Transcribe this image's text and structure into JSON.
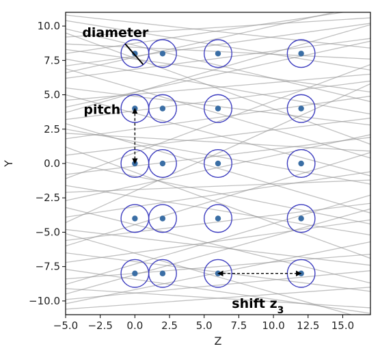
{
  "chart_data": {
    "type": "scatter",
    "xlabel": "Z",
    "ylabel": "Y",
    "xlim": [
      -5.0,
      17.0
    ],
    "ylim": [
      -11.0,
      11.0
    ],
    "xticks": [
      "−5.0",
      "−2.5",
      "0.0",
      "2.5",
      "5.0",
      "7.5",
      "10.0",
      "12.5",
      "15.0"
    ],
    "xtick_values": [
      -5,
      -2.5,
      0,
      2.5,
      5,
      7.5,
      10,
      12.5,
      15
    ],
    "yticks": [
      "−10.0",
      "−7.5",
      "−5.0",
      "−2.5",
      "0.0",
      "2.5",
      "5.0",
      "7.5",
      "10.0"
    ],
    "ytick_values": [
      -10,
      -7.5,
      -5,
      -2.5,
      0,
      2.5,
      5,
      7.5,
      10
    ],
    "grid": false,
    "circle_diameter": 2.0,
    "circle_color": "#3b3bbf",
    "point_color": "#3a6ea5",
    "line_color": "#8c8c8c",
    "points": [
      {
        "z": 0,
        "y": 8
      },
      {
        "z": 2,
        "y": 8
      },
      {
        "z": 6,
        "y": 8
      },
      {
        "z": 12,
        "y": 8
      },
      {
        "z": 0,
        "y": 4
      },
      {
        "z": 2,
        "y": 4
      },
      {
        "z": 6,
        "y": 4
      },
      {
        "z": 12,
        "y": 4
      },
      {
        "z": 0,
        "y": 0
      },
      {
        "z": 2,
        "y": 0
      },
      {
        "z": 6,
        "y": 0
      },
      {
        "z": 12,
        "y": 0
      },
      {
        "z": 0,
        "y": -4
      },
      {
        "z": 2,
        "y": -4
      },
      {
        "z": 6,
        "y": -4
      },
      {
        "z": 12,
        "y": -4
      },
      {
        "z": 0,
        "y": -8
      },
      {
        "z": 2,
        "y": -8
      },
      {
        "z": 6,
        "y": -8
      },
      {
        "z": 12,
        "y": -8
      }
    ],
    "background_lines": [
      [
        -5,
        9.2,
        17,
        10.6
      ],
      [
        -5,
        8.0,
        17,
        11.3
      ],
      [
        -5,
        7.1,
        17,
        10.2
      ],
      [
        -5,
        10.4,
        17,
        6.8
      ],
      [
        -5,
        9.8,
        17,
        4.5
      ],
      [
        -5,
        6.2,
        17,
        9.1
      ],
      [
        -5,
        5.5,
        17,
        2.8
      ],
      [
        -5,
        8.7,
        17,
        7.6
      ],
      [
        -5,
        4.1,
        17,
        8.9
      ],
      [
        -5,
        3.2,
        17,
        6.0
      ],
      [
        -5,
        2.5,
        17,
        -1.5
      ],
      [
        -5,
        6.9,
        17,
        0.4
      ],
      [
        -5,
        1.8,
        17,
        4.9
      ],
      [
        -5,
        0.6,
        17,
        3.3
      ],
      [
        -5,
        -0.8,
        17,
        1.9
      ],
      [
        -5,
        2.9,
        17,
        -3.6
      ],
      [
        -5,
        -1.6,
        17,
        -5.2
      ],
      [
        -5,
        -2.7,
        17,
        2.1
      ],
      [
        -5,
        -3.9,
        17,
        -0.6
      ],
      [
        -5,
        -4.8,
        17,
        -7.4
      ],
      [
        -5,
        -5.6,
        17,
        -2.9
      ],
      [
        -5,
        -6.5,
        17,
        -9.3
      ],
      [
        -5,
        -7.2,
        17,
        -4.1
      ],
      [
        -5,
        -8.4,
        17,
        -6.6
      ],
      [
        -5,
        -9.1,
        17,
        -10.5
      ],
      [
        -5,
        -9.9,
        17,
        -7.8
      ],
      [
        -5,
        -10.6,
        17,
        -9.0
      ],
      [
        -5,
        -3.2,
        17,
        -8.7
      ],
      [
        -5,
        0.1,
        17,
        -4.4
      ],
      [
        -5,
        5.0,
        17,
        -0.9
      ],
      [
        -5,
        7.6,
        17,
        3.6
      ],
      [
        -5,
        -6.0,
        17,
        0.8
      ],
      [
        -5,
        -8.8,
        17,
        -2.3
      ],
      [
        -5,
        10.8,
        17,
        8.4
      ],
      [
        -5,
        3.7,
        17,
        10.1
      ],
      [
        -5,
        -1.1,
        17,
        7.2
      ],
      [
        -5,
        -7.7,
        17,
        -10.9
      ],
      [
        -5,
        1.2,
        17,
        -6.9
      ],
      [
        -5,
        9.5,
        17,
        1.4
      ],
      [
        -5,
        -4.3,
        17,
        5.8
      ],
      [
        -5,
        -10.2,
        17,
        -5.7
      ],
      [
        -5,
        4.6,
        17,
        6.5
      ],
      [
        -5,
        -2.1,
        17,
        -1.2
      ],
      [
        -5,
        6.6,
        17,
        11.6
      ],
      [
        -5,
        -5.1,
        17,
        -11.4
      ],
      [
        -5,
        8.3,
        17,
        5.2
      ],
      [
        -5,
        2.2,
        17,
        0.9
      ],
      [
        -5,
        -9.5,
        17,
        -3.3
      ]
    ],
    "annotations": [
      {
        "text": "diameter",
        "x": -3.8,
        "y": 9.2
      },
      {
        "text": "pitch",
        "x": -3.7,
        "y": 3.6
      },
      {
        "text": "shift z",
        "subscript": "3",
        "x": 7.0,
        "y": -10.5
      }
    ],
    "arrows": [
      {
        "name": "diameter-line",
        "from": [
          -0.7,
          8.7
        ],
        "to": [
          0.6,
          7.2
        ],
        "style": "solid"
      },
      {
        "name": "pitch-arrow",
        "from": [
          0,
          4
        ],
        "to": [
          0,
          0
        ],
        "style": "dashed"
      },
      {
        "name": "shift-arrow",
        "from": [
          6,
          -8
        ],
        "to": [
          12,
          -8
        ],
        "style": "dashed"
      }
    ]
  }
}
